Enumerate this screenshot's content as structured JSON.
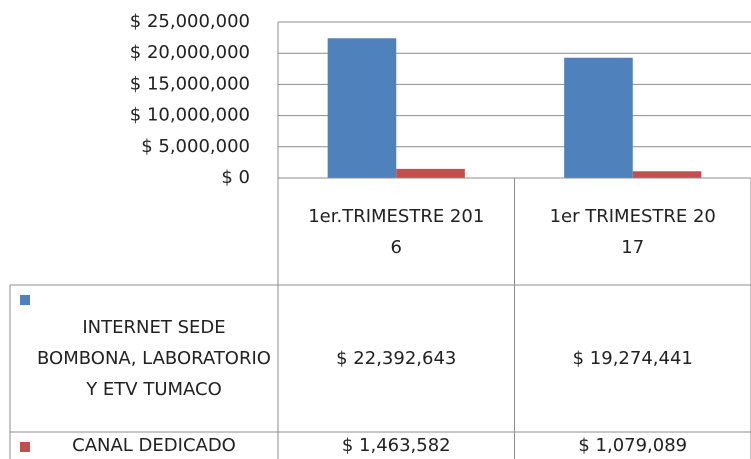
{
  "chart_data": {
    "type": "bar",
    "categories": [
      "1er.TRIMESTRE 2016",
      "1er TRIMESTRE 2017"
    ],
    "series": [
      {
        "name": "INTERNET SEDE BOMBONA, LABORATORIO Y ETV TUMACO",
        "color": "#4f81bd",
        "values": [
          22392643,
          19274441
        ],
        "value_labels": [
          "$ 22,392,643",
          "$ 19,274,441"
        ]
      },
      {
        "name": "CANAL DEDICADO",
        "color": "#c0504d",
        "values": [
          1463582,
          1079089
        ],
        "value_labels": [
          "$ 1,463,582",
          "$ 1,079,089"
        ]
      }
    ],
    "ylim": [
      0,
      25000000
    ],
    "yticks": [
      {
        "value": 0,
        "label": "$ 0"
      },
      {
        "value": 5000000,
        "label": "$ 5,000,000"
      },
      {
        "value": 10000000,
        "label": "$ 10,000,000"
      },
      {
        "value": 15000000,
        "label": "$ 15,000,000"
      },
      {
        "value": 20000000,
        "label": "$ 20,000,000"
      },
      {
        "value": 25000000,
        "label": "$ 25,000,000"
      }
    ],
    "grid": true,
    "data_table": true
  }
}
